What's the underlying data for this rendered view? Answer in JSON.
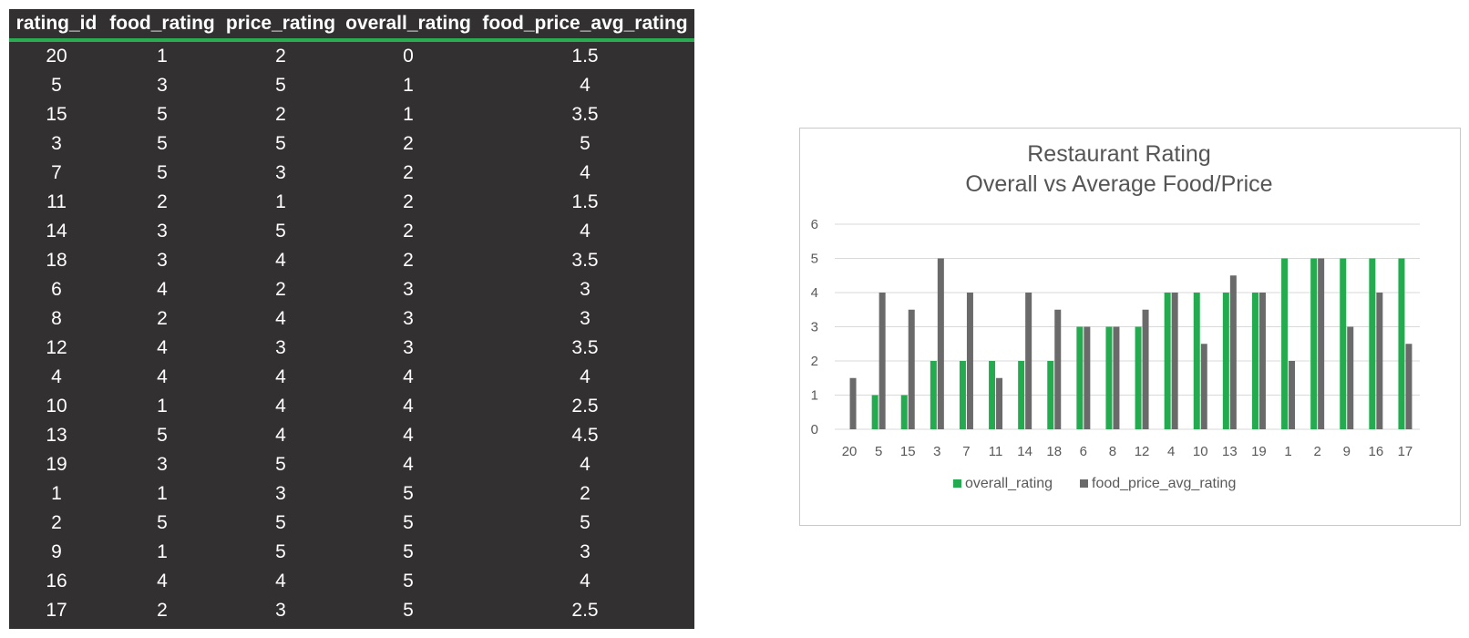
{
  "table": {
    "headers": [
      "rating_id",
      "food_rating",
      "price_rating",
      "overall_rating",
      "food_price_avg_rating"
    ],
    "rows": [
      [
        "20",
        "1",
        "2",
        "0",
        "1.5"
      ],
      [
        "5",
        "3",
        "5",
        "1",
        "4"
      ],
      [
        "15",
        "5",
        "2",
        "1",
        "3.5"
      ],
      [
        "3",
        "5",
        "5",
        "2",
        "5"
      ],
      [
        "7",
        "5",
        "3",
        "2",
        "4"
      ],
      [
        "11",
        "2",
        "1",
        "2",
        "1.5"
      ],
      [
        "14",
        "3",
        "5",
        "2",
        "4"
      ],
      [
        "18",
        "3",
        "4",
        "2",
        "3.5"
      ],
      [
        "6",
        "4",
        "2",
        "3",
        "3"
      ],
      [
        "8",
        "2",
        "4",
        "3",
        "3"
      ],
      [
        "12",
        "4",
        "3",
        "3",
        "3.5"
      ],
      [
        "4",
        "4",
        "4",
        "4",
        "4"
      ],
      [
        "10",
        "1",
        "4",
        "4",
        "2.5"
      ],
      [
        "13",
        "5",
        "4",
        "4",
        "4.5"
      ],
      [
        "19",
        "3",
        "5",
        "4",
        "4"
      ],
      [
        "1",
        "1",
        "3",
        "5",
        "2"
      ],
      [
        "2",
        "5",
        "5",
        "5",
        "5"
      ],
      [
        "9",
        "1",
        "5",
        "5",
        "3"
      ],
      [
        "16",
        "4",
        "4",
        "5",
        "4"
      ],
      [
        "17",
        "2",
        "3",
        "5",
        "2.5"
      ]
    ]
  },
  "colors": {
    "sheet_bg": "#323031",
    "header_underline": "#2bab52",
    "series_overall": "#25ab4f",
    "series_avg": "#6b6a6b",
    "gridline": "#d9d9d9"
  },
  "chart_data": {
    "type": "bar",
    "title_lines": [
      "Restaurant Rating",
      "Overall vs Average Food/Price"
    ],
    "categories": [
      "20",
      "5",
      "15",
      "3",
      "7",
      "11",
      "14",
      "18",
      "6",
      "8",
      "12",
      "4",
      "10",
      "13",
      "19",
      "1",
      "2",
      "9",
      "16",
      "17"
    ],
    "series": [
      {
        "name": "overall_rating",
        "color": "#25ab4f",
        "values": [
          0,
          1,
          1,
          2,
          2,
          2,
          2,
          2,
          3,
          3,
          3,
          4,
          4,
          4,
          4,
          5,
          5,
          5,
          5,
          5
        ]
      },
      {
        "name": "food_price_avg_rating",
        "color": "#6b6a6b",
        "values": [
          1.5,
          4,
          3.5,
          5,
          4,
          1.5,
          4,
          3.5,
          3,
          3,
          3.5,
          4,
          2.5,
          4.5,
          4,
          2,
          5,
          3,
          4,
          2.5
        ]
      }
    ],
    "ylim": [
      0,
      6
    ],
    "yticks": [
      0,
      1,
      2,
      3,
      4,
      5,
      6
    ],
    "grid": true,
    "legend": "bottom",
    "xlabel": "",
    "ylabel": ""
  }
}
